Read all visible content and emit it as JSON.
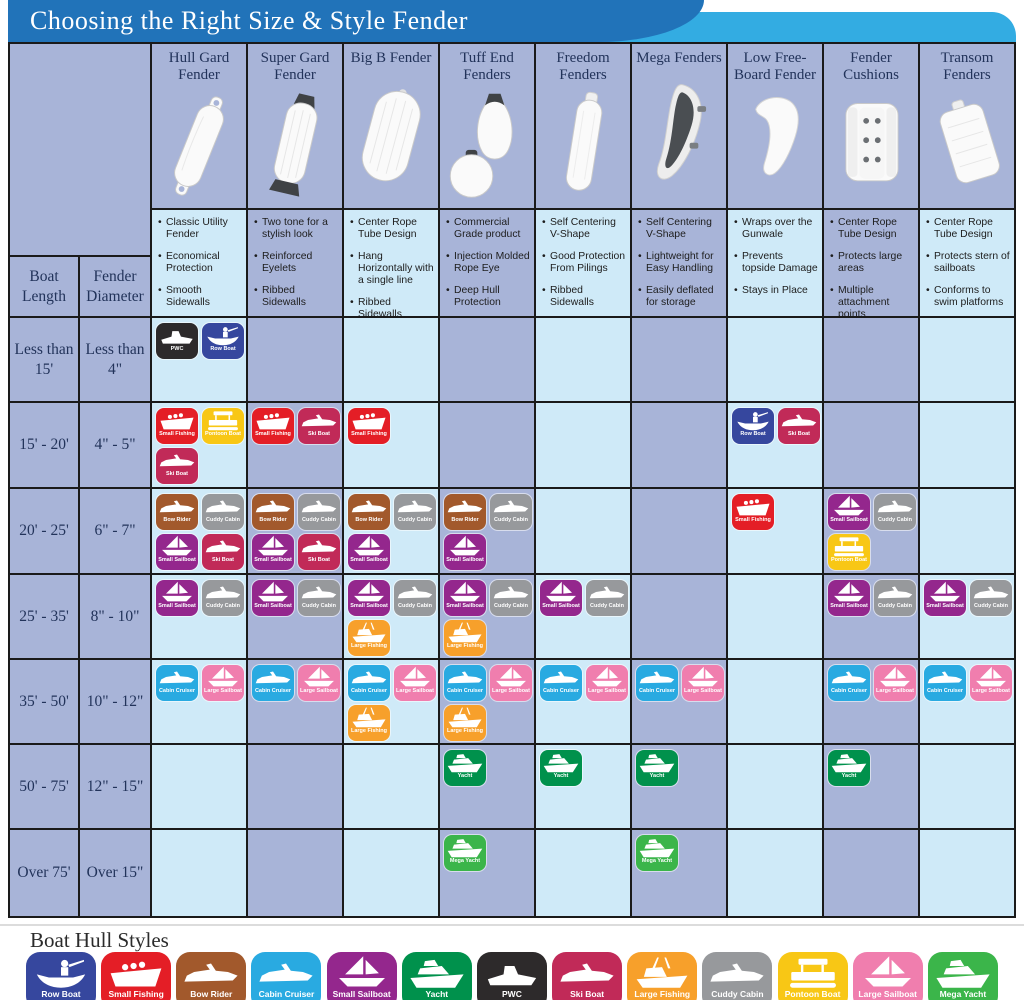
{
  "title_bar": {
    "title": "Choosing the Right Size & Style Fender"
  },
  "axis": {
    "boat_length": "Boat Length",
    "fender_diameter": "Fender Diameter"
  },
  "colors": {
    "title_bar_blue": "#2173b9",
    "title_swoosh_blue": "#33ace2",
    "cell_light": "#cfeaf8",
    "cell_dark": "#a8b4d8",
    "grid_line": "#1a1a1a"
  },
  "columns": [
    {
      "id": "hull_gard",
      "title": "Hull Gard Fender",
      "features": [
        "Classic Utility Fender",
        "Economical Protection",
        "Smooth Sidewalls"
      ]
    },
    {
      "id": "super_gard",
      "title": "Super Gard Fender",
      "features": [
        "Two tone for a stylish look",
        "Reinforced Eyelets",
        "Ribbed Sidewalls"
      ]
    },
    {
      "id": "big_b",
      "title": "Big B Fender",
      "features": [
        "Center Rope Tube Design",
        "Hang Horizontally with a single line",
        "Ribbed Sidewalls"
      ]
    },
    {
      "id": "tuff_end",
      "title": "Tuff End Fenders",
      "features": [
        "Commercial Grade product",
        "Injection Molded Rope Eye",
        "Deep Hull Protection"
      ]
    },
    {
      "id": "freedom",
      "title": "Freedom Fenders",
      "features": [
        "Self Centering V-Shape",
        "Good Protection From Pilings",
        "Ribbed Sidewalls"
      ]
    },
    {
      "id": "mega",
      "title": "Mega Fenders",
      "features": [
        "Self Centering V-Shape",
        "Lightweight for Easy Handling",
        "Easily deflated for storage"
      ]
    },
    {
      "id": "low_free",
      "title": "Low Free-Board Fender",
      "features": [
        "Wraps over the Gunwale",
        "Prevents topside Damage",
        "Stays in Place"
      ]
    },
    {
      "id": "cushion",
      "title": "Fender Cushions",
      "features": [
        "Center Rope Tube Design",
        "Protects large areas",
        "Multiple attachment points"
      ]
    },
    {
      "id": "transom",
      "title": "Transom Fenders",
      "features": [
        "Center Rope Tube Design",
        "Protects stern of sailboats",
        "Conforms to swim platforms"
      ]
    }
  ],
  "hull_styles": [
    {
      "id": "row-boat",
      "label": "Row Boat",
      "color": "#36479e",
      "glyph": "row"
    },
    {
      "id": "small-fishing",
      "label": "Small Fishing",
      "color": "#e41e26",
      "glyph": "skiff"
    },
    {
      "id": "bow-rider",
      "label": "Bow Rider",
      "color": "#a2592c",
      "glyph": "power"
    },
    {
      "id": "cabin-cruiser",
      "label": "Cabin Cruiser",
      "color": "#29aae1",
      "glyph": "power"
    },
    {
      "id": "small-sailboat",
      "label": "Small Sailboat",
      "color": "#94278d",
      "glyph": "sail"
    },
    {
      "id": "yacht",
      "label": "Yacht",
      "color": "#00914c",
      "glyph": "yacht"
    },
    {
      "id": "pwc",
      "label": "PWC",
      "color": "#2d2a2b",
      "glyph": "pwc"
    },
    {
      "id": "ski-boat",
      "label": "Ski Boat",
      "color": "#c12a58",
      "glyph": "power"
    },
    {
      "id": "large-fishing",
      "label": "Large Fishing",
      "color": "#f7a02b",
      "glyph": "fishing"
    },
    {
      "id": "cuddy-cabin",
      "label": "Cuddy Cabin",
      "color": "#97999c",
      "glyph": "power"
    },
    {
      "id": "pontoon-boat",
      "label": "Pontoon Boat",
      "color": "#f8c715",
      "glyph": "pontoon"
    },
    {
      "id": "large-sailboat",
      "label": "Large Sailboat",
      "color": "#f07eae",
      "glyph": "sail"
    },
    {
      "id": "mega-yacht",
      "label": "Mega Yacht",
      "color": "#3bb54a",
      "glyph": "yacht"
    }
  ],
  "matrix_rows": [
    {
      "length": "Less than 15'",
      "diameter": "Less than 4\"",
      "cells": [
        [
          "pwc",
          "row-boat"
        ],
        [],
        [],
        [],
        [],
        [],
        [],
        [],
        []
      ]
    },
    {
      "length": "15' - 20'",
      "diameter": "4\" - 5\"",
      "cells": [
        [
          "small-fishing",
          "pontoon-boat",
          "ski-boat"
        ],
        [
          "small-fishing",
          "ski-boat"
        ],
        [
          "small-fishing"
        ],
        [],
        [],
        [],
        [
          "row-boat",
          "ski-boat"
        ],
        [],
        []
      ]
    },
    {
      "length": "20' - 25'",
      "diameter": "6\" - 7\"",
      "cells": [
        [
          "bow-rider",
          "cuddy-cabin",
          "small-sailboat",
          "ski-boat"
        ],
        [
          "bow-rider",
          "cuddy-cabin",
          "small-sailboat",
          "ski-boat"
        ],
        [
          "bow-rider",
          "cuddy-cabin",
          "small-sailboat"
        ],
        [
          "bow-rider",
          "cuddy-cabin",
          "small-sailboat"
        ],
        [],
        [],
        [
          "small-fishing"
        ],
        [
          "small-sailboat",
          "cuddy-cabin",
          "pontoon-boat"
        ],
        []
      ]
    },
    {
      "length": "25' - 35'",
      "diameter": "8\" - 10\"",
      "cells": [
        [
          "small-sailboat",
          "cuddy-cabin"
        ],
        [
          "small-sailboat",
          "cuddy-cabin"
        ],
        [
          "small-sailboat",
          "cuddy-cabin",
          "large-fishing"
        ],
        [
          "small-sailboat",
          "cuddy-cabin",
          "large-fishing"
        ],
        [
          "small-sailboat",
          "cuddy-cabin"
        ],
        [],
        [],
        [
          "small-sailboat",
          "cuddy-cabin"
        ],
        [
          "small-sailboat",
          "cuddy-cabin"
        ]
      ]
    },
    {
      "length": "35' - 50'",
      "diameter": "10\" - 12\"",
      "cells": [
        [
          "cabin-cruiser",
          "large-sailboat"
        ],
        [
          "cabin-cruiser",
          "large-sailboat"
        ],
        [
          "cabin-cruiser",
          "large-sailboat",
          "large-fishing"
        ],
        [
          "cabin-cruiser",
          "large-sailboat",
          "large-fishing"
        ],
        [
          "cabin-cruiser",
          "large-sailboat"
        ],
        [
          "cabin-cruiser",
          "large-sailboat"
        ],
        [],
        [
          "cabin-cruiser",
          "large-sailboat"
        ],
        [
          "cabin-cruiser",
          "large-sailboat"
        ]
      ]
    },
    {
      "length": "50' - 75'",
      "diameter": "12\" - 15\"",
      "cells": [
        [],
        [],
        [],
        [
          "yacht"
        ],
        [
          "yacht"
        ],
        [
          "yacht"
        ],
        [],
        [
          "yacht"
        ],
        []
      ]
    },
    {
      "length": "Over 75'",
      "diameter": "Over 15\"",
      "cells": [
        [],
        [],
        [],
        [
          "mega-yacht"
        ],
        [],
        [
          "mega-yacht"
        ],
        [],
        [],
        []
      ]
    }
  ],
  "legend": {
    "title": "Boat Hull Styles"
  }
}
